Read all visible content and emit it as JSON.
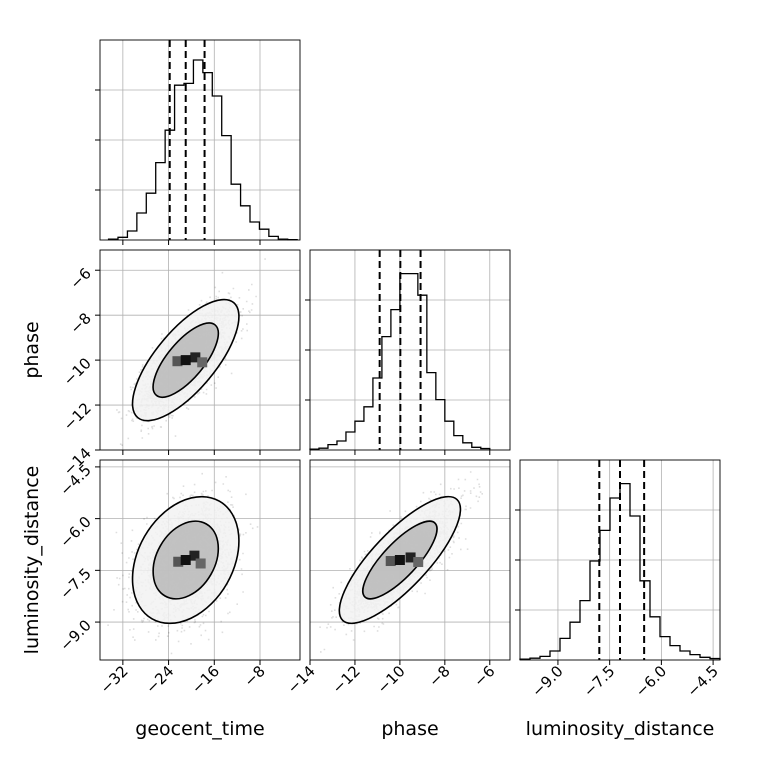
{
  "chart_data": {
    "type": "corner",
    "parameters": [
      "geocent_time",
      "phase",
      "luminosity_distance"
    ],
    "xlabels": [
      "geocent_time",
      "phase",
      "luminosity_distance"
    ],
    "ylabels": [
      "",
      "phase",
      "luminosity_distance"
    ],
    "ranges": {
      "geocent_time": [
        -36,
        -1
      ],
      "phase": [
        -14,
        -5.1
      ],
      "luminosity_distance": [
        -10.1,
        -4.3
      ]
    },
    "ticks": {
      "geocent_time": [
        -32,
        -24,
        -16,
        -8
      ],
      "phase": [
        -14,
        -12,
        -10,
        -8,
        -6
      ],
      "luminosity_distance": [
        -9.0,
        -7.5,
        -6.0,
        -4.5
      ]
    },
    "tick_labels": {
      "geocent_time": [
        "−32",
        "−24",
        "−16",
        "−8"
      ],
      "phase": [
        "−14",
        "−12",
        "−10",
        "−8",
        "−6"
      ],
      "luminosity_distance": [
        "−9.0",
        "−7.5",
        "−6.0",
        "−4.5"
      ]
    },
    "quantiles": {
      "geocent_time": [
        -23.8,
        -21.0,
        -17.7
      ],
      "phase": [
        -10.9,
        -9.98,
        -9.08
      ],
      "luminosity_distance": [
        -7.8,
        -7.2,
        -6.5
      ]
    },
    "histograms": {
      "geocent_time": {
        "edges": [
          -34.5,
          -32.85,
          -31.2,
          -29.55,
          -27.9,
          -26.25,
          -24.6,
          -22.95,
          -21.3,
          -19.65,
          -18.0,
          -16.35,
          -14.7,
          -13.05,
          -11.4,
          -9.75,
          -8.1,
          -6.45,
          -4.8,
          -3.15,
          -1.5
        ],
        "counts": [
          0.005,
          0.015,
          0.05,
          0.15,
          0.26,
          0.43,
          0.61,
          0.86,
          0.87,
          1.0,
          0.93,
          0.8,
          0.58,
          0.31,
          0.19,
          0.1,
          0.06,
          0.02,
          0.005,
          0.002
        ]
      },
      "phase": {
        "edges": [
          -14.0,
          -13.6,
          -13.2,
          -12.8,
          -12.4,
          -12.0,
          -11.6,
          -11.2,
          -10.8,
          -10.4,
          -10.0,
          -9.6,
          -9.2,
          -8.8,
          -8.4,
          -8.0,
          -7.6,
          -7.2,
          -6.8,
          -6.4,
          -6.0
        ],
        "counts": [
          0.005,
          0.01,
          0.03,
          0.05,
          0.1,
          0.16,
          0.24,
          0.4,
          0.63,
          0.78,
          0.98,
          0.98,
          0.86,
          0.43,
          0.28,
          0.16,
          0.08,
          0.04,
          0.015,
          0.008
        ]
      },
      "luminosity_distance": {
        "edges": [
          -10.1,
          -9.81,
          -9.52,
          -9.23,
          -8.94,
          -8.65,
          -8.36,
          -8.07,
          -7.78,
          -7.49,
          -7.2,
          -6.91,
          -6.62,
          -6.33,
          -6.04,
          -5.75,
          -5.46,
          -5.17,
          -4.88,
          -4.59,
          -4.3
        ],
        "counts": [
          0.005,
          0.01,
          0.02,
          0.05,
          0.12,
          0.21,
          0.33,
          0.55,
          0.72,
          0.9,
          0.98,
          0.8,
          0.44,
          0.24,
          0.13,
          0.08,
          0.05,
          0.03,
          0.015,
          0.008
        ]
      }
    },
    "samples_2d": [
      {
        "x": "geocent_time",
        "y": "phase",
        "mean": [
          -21,
          -10
        ],
        "sd": [
          3.8,
          1.1
        ],
        "corr": 0.72,
        "n": 2600
      },
      {
        "x": "geocent_time",
        "y": "luminosity_distance",
        "mean": [
          -21,
          -7.2
        ],
        "sd": [
          3.8,
          0.75
        ],
        "corr": 0.3,
        "n": 2600
      },
      {
        "x": "phase",
        "y": "luminosity_distance",
        "mean": [
          -10,
          -7.2
        ],
        "sd": [
          1.1,
          0.75
        ],
        "corr": 0.8,
        "n": 2600
      }
    ],
    "contour_levels_sigma": [
      1.0,
      2.0
    ],
    "grid": true,
    "colors": {
      "line": "#000000",
      "grid": "#b0b0b0",
      "points": "#000000"
    }
  }
}
